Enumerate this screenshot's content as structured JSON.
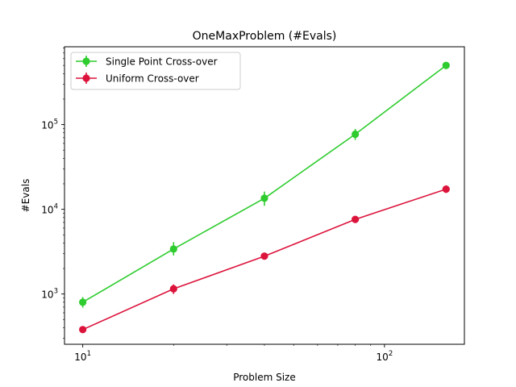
{
  "chart_data": {
    "type": "line",
    "title": "OneMaxProblem (#Evals)",
    "xlabel": "Problem Size",
    "ylabel": "#Evals",
    "xscale": "log",
    "yscale": "log",
    "xlim": [
      8.7,
      184
    ],
    "ylim": [
      255,
      830000
    ],
    "x": [
      10,
      20,
      40,
      80,
      160
    ],
    "x_ticks": [
      {
        "value": 10,
        "base": "10",
        "exp": "1"
      },
      {
        "value": 100,
        "base": "10",
        "exp": "2"
      }
    ],
    "y_ticks": [
      {
        "value": 1000,
        "base": "10",
        "exp": "3"
      },
      {
        "value": 10000,
        "base": "10",
        "exp": "4"
      },
      {
        "value": 100000,
        "base": "10",
        "exp": "5"
      }
    ],
    "legend": "top-left",
    "grid": false,
    "series": [
      {
        "name": "Single Point Cross-over",
        "color": "#2ecc2e",
        "values": [
          800,
          3400,
          13500,
          77000,
          500000
        ],
        "err_low": [
          690,
          2850,
          11000,
          66000,
          470000
        ],
        "err_high": [
          920,
          4100,
          16200,
          89000,
          530000
        ]
      },
      {
        "name": "Uniform Cross-over",
        "color": "#dc143c",
        "values": [
          380,
          1150,
          2800,
          7600,
          17300
        ],
        "err_low": [
          365,
          1000,
          2580,
          7250,
          15600
        ],
        "err_high": [
          395,
          1300,
          3020,
          7950,
          19200
        ]
      }
    ]
  }
}
